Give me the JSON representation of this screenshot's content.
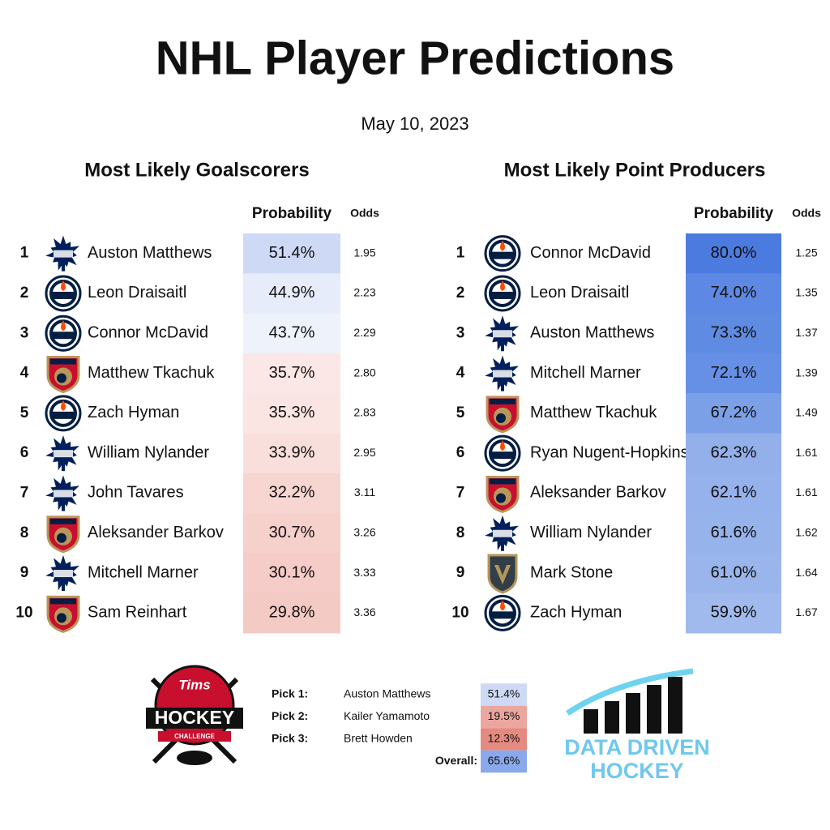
{
  "header": {
    "title": "NHL Player Predictions",
    "date": "May 10, 2023"
  },
  "tables": [
    {
      "heading": "Most Likely Goalscorers",
      "columns": [
        "Probability",
        "Odds"
      ],
      "rows": [
        {
          "rank": 1,
          "player": "Auston Matthews",
          "team": "leafs",
          "probability": "51.4%",
          "odds": "1.95",
          "color": "#cdd9f5"
        },
        {
          "rank": 2,
          "player": "Leon Draisaitl",
          "team": "oilers",
          "probability": "44.9%",
          "odds": "2.23",
          "color": "#e6ecfa"
        },
        {
          "rank": 3,
          "player": "Connor McDavid",
          "team": "oilers",
          "probability": "43.7%",
          "odds": "2.29",
          "color": "#eef2fb"
        },
        {
          "rank": 4,
          "player": "Matthew Tkachuk",
          "team": "panthers",
          "probability": "35.7%",
          "odds": "2.80",
          "color": "#fbe7e5"
        },
        {
          "rank": 5,
          "player": "Zach Hyman",
          "team": "oilers",
          "probability": "35.3%",
          "odds": "2.83",
          "color": "#fbe5e3"
        },
        {
          "rank": 6,
          "player": "William Nylander",
          "team": "leafs",
          "probability": "33.9%",
          "odds": "2.95",
          "color": "#f9dfdc"
        },
        {
          "rank": 7,
          "player": "John Tavares",
          "team": "leafs",
          "probability": "32.2%",
          "odds": "3.11",
          "color": "#f7d6d2"
        },
        {
          "rank": 8,
          "player": "Aleksander Barkov",
          "team": "panthers",
          "probability": "30.7%",
          "odds": "3.26",
          "color": "#f6d0cb"
        },
        {
          "rank": 9,
          "player": "Mitchell Marner",
          "team": "leafs",
          "probability": "30.1%",
          "odds": "3.33",
          "color": "#f5ccc7"
        },
        {
          "rank": 10,
          "player": "Sam Reinhart",
          "team": "panthers",
          "probability": "29.8%",
          "odds": "3.36",
          "color": "#f4cac5"
        }
      ]
    },
    {
      "heading": "Most Likely Point Producers",
      "columns": [
        "Probability",
        "Odds"
      ],
      "rows": [
        {
          "rank": 1,
          "player": "Connor McDavid",
          "team": "oilers",
          "probability": "80.0%",
          "odds": "1.25",
          "color": "#4c7be0"
        },
        {
          "rank": 2,
          "player": "Leon Draisaitl",
          "team": "oilers",
          "probability": "74.0%",
          "odds": "1.35",
          "color": "#5d88e3"
        },
        {
          "rank": 3,
          "player": "Auston Matthews",
          "team": "leafs",
          "probability": "73.3%",
          "odds": "1.37",
          "color": "#608be3"
        },
        {
          "rank": 4,
          "player": "Mitchell Marner",
          "team": "leafs",
          "probability": "72.1%",
          "odds": "1.39",
          "color": "#6690e5"
        },
        {
          "rank": 5,
          "player": "Matthew Tkachuk",
          "team": "panthers",
          "probability": "67.2%",
          "odds": "1.49",
          "color": "#7ca0e8"
        },
        {
          "rank": 6,
          "player": "Ryan Nugent-Hopkins",
          "team": "oilers",
          "probability": "62.3%",
          "odds": "1.61",
          "color": "#93b0eb"
        },
        {
          "rank": 7,
          "player": "Aleksander Barkov",
          "team": "panthers",
          "probability": "62.1%",
          "odds": "1.61",
          "color": "#95b2ec"
        },
        {
          "rank": 8,
          "player": "William Nylander",
          "team": "leafs",
          "probability": "61.6%",
          "odds": "1.62",
          "color": "#97b3ec"
        },
        {
          "rank": 9,
          "player": "Mark Stone",
          "team": "knights",
          "probability": "61.0%",
          "odds": "1.64",
          "color": "#9ab5ec"
        },
        {
          "rank": 10,
          "player": "Zach Hyman",
          "team": "oilers",
          "probability": "59.9%",
          "odds": "1.67",
          "color": "#a0baed"
        }
      ]
    }
  ],
  "picks": {
    "rows": [
      {
        "label": "Pick 1:",
        "player": "Auston Matthews",
        "probability": "51.4%",
        "color": "#cdd9f5"
      },
      {
        "label": "Pick 2:",
        "player": "Kailer Yamamoto",
        "probability": "19.5%",
        "color": "#eba69f"
      },
      {
        "label": "Pick 3:",
        "player": "Brett Howden",
        "probability": "12.3%",
        "color": "#e58a80"
      }
    ],
    "overall": {
      "label": "Overall:",
      "probability": "65.6%",
      "color": "#8aa9ea"
    }
  },
  "logos": {
    "tims": {
      "top": "Tims",
      "main": "HOCKEY",
      "sub": "CHALLENGE"
    },
    "ddh": {
      "line1": "DATA DRIVEN",
      "line2": "HOCKEY"
    }
  }
}
